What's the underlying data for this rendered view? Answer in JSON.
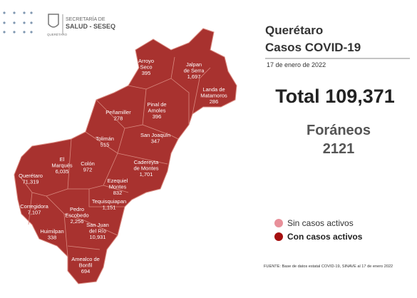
{
  "header": {
    "agency_line1": "SECRETARÍA DE",
    "agency_line2": "SALUD - SESEQ",
    "agency_state": "QUERÉTARO"
  },
  "title": {
    "line1": "Querétaro",
    "line2": "Casos COVID-19",
    "date": "17 de enero de 2022"
  },
  "total": {
    "label": "Total",
    "value": "109,371"
  },
  "foraneos": {
    "label": "Foráneos",
    "value": "2121"
  },
  "legend": [
    "Sin casos activos",
    "Con casos activos"
  ],
  "source": "FUENTE: Base de datos estatal COVID-19, SINAVE al 17 de enero 2022",
  "municipalities": [
    {
      "name": [
        "Arroyo",
        "Seco"
      ],
      "cases": "395"
    },
    {
      "name": [
        "Jalpan",
        "de Serra"
      ],
      "cases": "1,697"
    },
    {
      "name": [
        "Landa de",
        "Matamoros"
      ],
      "cases": "286"
    },
    {
      "name": [
        "Pinal de",
        "Amoles"
      ],
      "cases": "396"
    },
    {
      "name": [
        "Peñamiller"
      ],
      "cases": "278"
    },
    {
      "name": [
        "San Joaquín"
      ],
      "cases": "347"
    },
    {
      "name": [
        "Tolimán"
      ],
      "cases": "515"
    },
    {
      "name": [
        "El",
        "Marqués"
      ],
      "cases": "6,035"
    },
    {
      "name": [
        "Colón"
      ],
      "cases": "972"
    },
    {
      "name": [
        "Cadereyta",
        "de Montes"
      ],
      "cases": "1,701"
    },
    {
      "name": [
        "Querétaro"
      ],
      "cases": "71,319"
    },
    {
      "name": [
        "Ezequiel",
        "Montes"
      ],
      "cases": "832"
    },
    {
      "name": [
        "Tequisquiapan"
      ],
      "cases": "1,151"
    },
    {
      "name": [
        "Corregidora"
      ],
      "cases": "7,107"
    },
    {
      "name": [
        "Pedro",
        "Escobedo"
      ],
      "cases": "2,256"
    },
    {
      "name": [
        "San Juan",
        "del Río"
      ],
      "cases": "10,931"
    },
    {
      "name": [
        "Huimilpan"
      ],
      "cases": "338"
    },
    {
      "name": [
        "Amealco de",
        "Bonfil"
      ],
      "cases": "694"
    }
  ]
}
